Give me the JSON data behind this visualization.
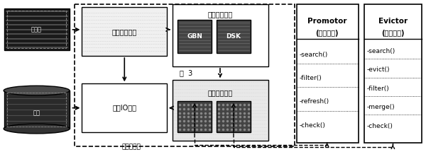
{
  "promotor_methods": [
    "-search()",
    "-filter()",
    "-refresh()",
    "-check()"
  ],
  "evictor_methods": [
    "-search()",
    "-evict()",
    "-filter()",
    "-merge()",
    "-check()"
  ],
  "fig3_label": "图  3"
}
